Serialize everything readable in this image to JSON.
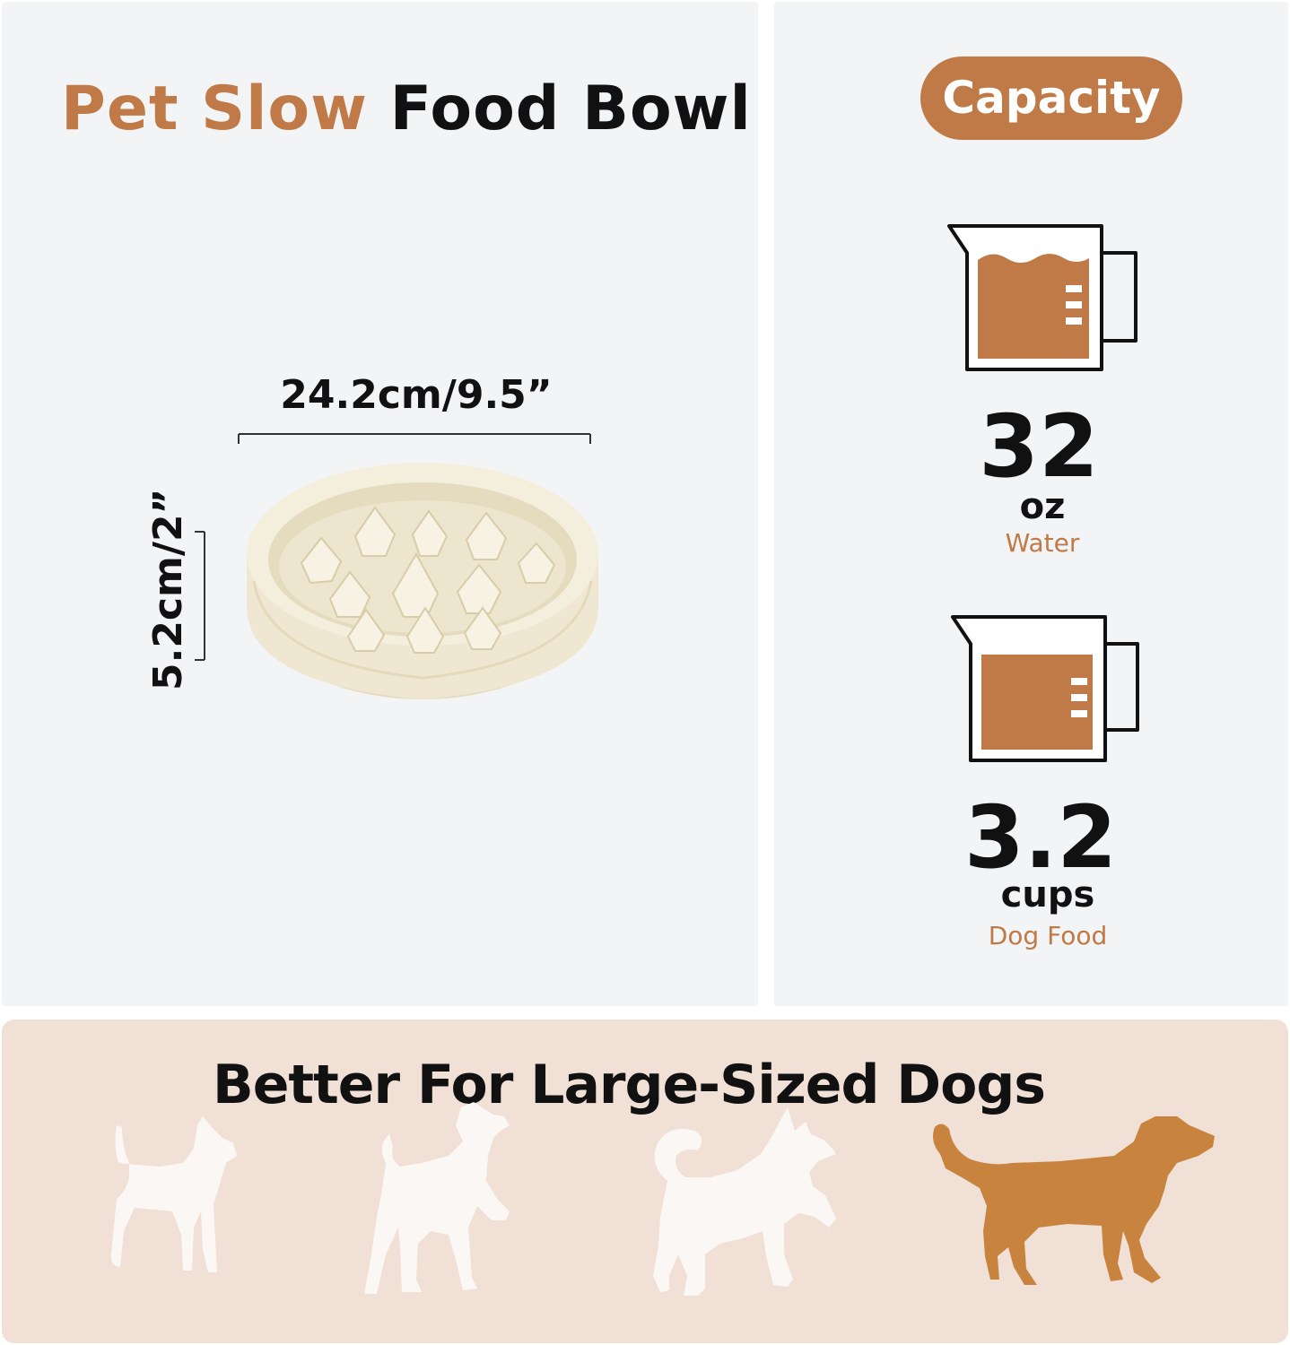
{
  "title": {
    "accent": "Pet Slow",
    "rest": "Food Bowl"
  },
  "dimensions": {
    "width_label": "24.2cm/9.5”",
    "height_label": "5.2cm/2”"
  },
  "capacity": {
    "label": "Capacity",
    "water": {
      "amount": "32",
      "unit": "oz",
      "label": "Water"
    },
    "food": {
      "amount": "3.2",
      "unit": "cups",
      "label": "Dog Food"
    }
  },
  "bottom": {
    "title": "Better For Large-Sized Dogs",
    "dogs": [
      {
        "icon": "small-dog-icon",
        "highlighted": false
      },
      {
        "icon": "terrier-dog-icon",
        "highlighted": false
      },
      {
        "icon": "husky-dog-icon",
        "highlighted": false
      },
      {
        "icon": "retriever-dog-icon",
        "highlighted": true
      }
    ]
  },
  "colors": {
    "accent": "#c07a47",
    "panel": "#f3f4f6",
    "bottom_panel": "#f0e0d6",
    "dog_inactive": "#fbf7f4",
    "dog_active": "#c8843f",
    "bowl": "#f1ead6"
  }
}
